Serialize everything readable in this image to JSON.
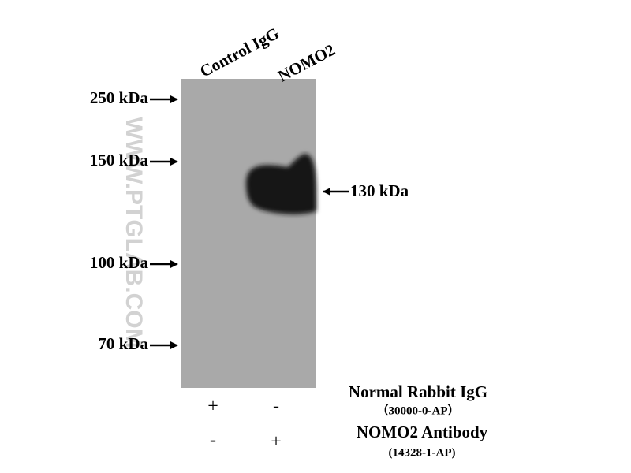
{
  "lanes": [
    "Control IgG",
    "NOMO2"
  ],
  "markers": [
    "250 kDa",
    "150 kDa",
    "100 kDa",
    "70 kDa"
  ],
  "band_label": "130 kDa",
  "watermark": "WWW.PTGLAB.COM",
  "reagents": [
    {
      "name": "Normal Rabbit IgG",
      "catalog": "（30000-0-AP）",
      "lanes": [
        "+",
        "-"
      ]
    },
    {
      "name": "NOMO2 Antibody",
      "catalog": "(14328-1-AP)",
      "lanes": [
        "-",
        "+"
      ]
    }
  ]
}
